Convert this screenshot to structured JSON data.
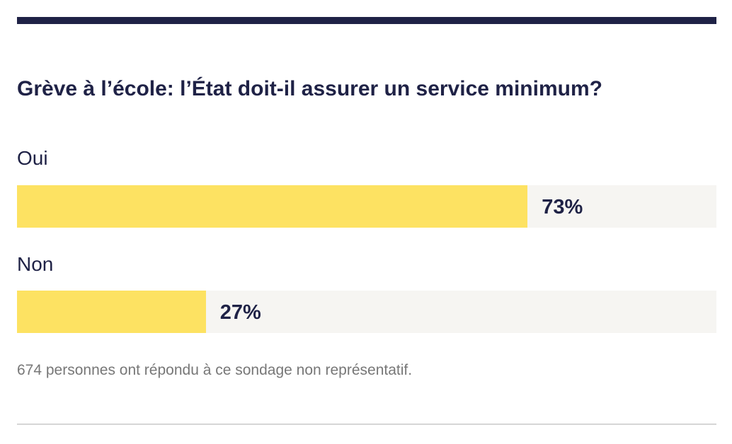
{
  "colors": {
    "accent_bar": "#fde262",
    "track": "#f6f5f2",
    "text": "#1f2246",
    "muted_text": "#777777",
    "rule": "#1f2246"
  },
  "chart_data": {
    "type": "bar",
    "orientation": "horizontal",
    "title": "Grève à l’école: l’État doit-il assurer un service minimum?",
    "categories": [
      "Oui",
      "Non"
    ],
    "values": [
      73,
      27
    ],
    "value_labels": [
      "73%",
      "27%"
    ],
    "unit": "%",
    "xlim": [
      0,
      100
    ],
    "grid": false,
    "legend": "none",
    "footnote": "674 personnes ont répondu à ce sondage non représentatif."
  }
}
